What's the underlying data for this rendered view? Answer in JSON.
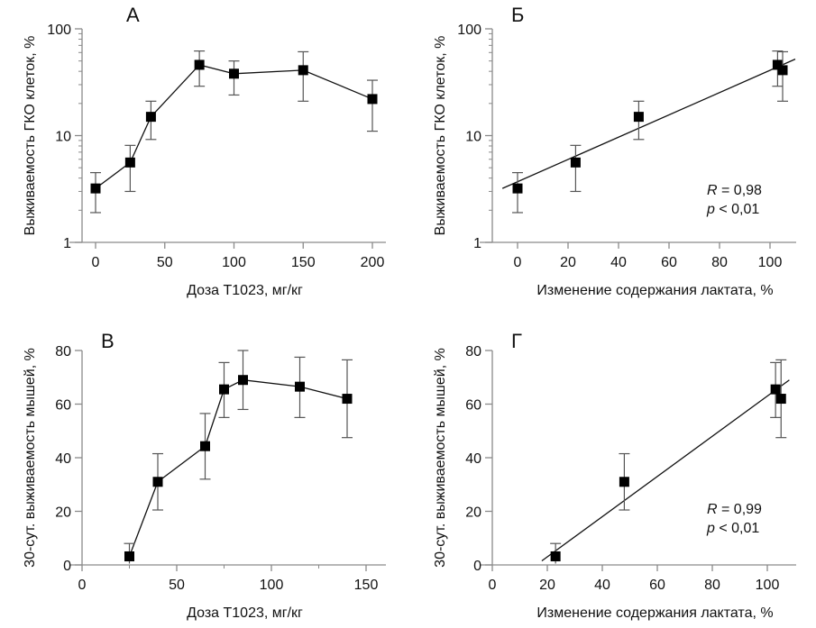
{
  "chart_data": [
    {
      "id": "A",
      "type": "line",
      "panel_label": "А",
      "xlabel": "Доза Т1023, мг/кг",
      "ylabel": "Выживаемость ГКО клеток, %",
      "yscale": "log",
      "xlim": [
        -10,
        210
      ],
      "ylim": [
        1,
        100
      ],
      "xticks": [
        0,
        50,
        100,
        150,
        200
      ],
      "xtick_labels": [
        "0",
        "50",
        "100",
        "150",
        "200"
      ],
      "yticks": [
        1,
        10,
        100
      ],
      "ytick_labels": [
        "1",
        "10",
        "100"
      ],
      "connect_points": true,
      "points": [
        {
          "x": 0,
          "y": 3.2,
          "err_hi": 4.5,
          "err_lo": 1.9
        },
        {
          "x": 25,
          "y": 5.6,
          "err_hi": 8.1,
          "err_lo": 3.0
        },
        {
          "x": 40,
          "y": 15,
          "err_hi": 21,
          "err_lo": 9.2
        },
        {
          "x": 75,
          "y": 46,
          "err_hi": 62,
          "err_lo": 29
        },
        {
          "x": 100,
          "y": 38,
          "err_hi": 50,
          "err_lo": 24
        },
        {
          "x": 150,
          "y": 41,
          "err_hi": 61,
          "err_lo": 21
        },
        {
          "x": 200,
          "y": 22,
          "err_hi": 33,
          "err_lo": 11
        }
      ]
    },
    {
      "id": "B",
      "type": "scatter",
      "panel_label": "Б",
      "xlabel": "Изменение содержания лактата, %",
      "ylabel": "Выживаемость ГКО клеток, %",
      "yscale": "log",
      "xlim": [
        -10,
        110
      ],
      "ylim": [
        1,
        100
      ],
      "xticks": [
        0,
        20,
        40,
        60,
        80,
        100
      ],
      "xtick_labels": [
        "0",
        "20",
        "40",
        "60",
        "80",
        "100"
      ],
      "yticks": [
        1,
        10,
        100
      ],
      "ytick_labels": [
        "1",
        "10",
        "100"
      ],
      "connect_points": false,
      "points": [
        {
          "x": 0,
          "y": 3.2,
          "err_hi": 4.5,
          "err_lo": 1.9
        },
        {
          "x": 23,
          "y": 5.6,
          "err_hi": 8.1,
          "err_lo": 3.0
        },
        {
          "x": 48,
          "y": 15,
          "err_hi": 21,
          "err_lo": 9.2
        },
        {
          "x": 103,
          "y": 46,
          "err_hi": 62,
          "err_lo": 29
        },
        {
          "x": 105,
          "y": 41,
          "err_hi": 61,
          "err_lo": 21
        }
      ],
      "fit": {
        "x": [
          -6,
          110
        ],
        "y": [
          3.2,
          52
        ]
      },
      "annotation": {
        "r_label": "R",
        "r_value": " = 0,98",
        "p_label": "p",
        "p_value": " < 0,01"
      }
    },
    {
      "id": "C",
      "type": "line",
      "panel_label": "В",
      "xlabel": "Доза Т1023, мг/кг",
      "ylabel": "30-сут. выживаемость мышей, %",
      "yscale": "linear",
      "xlim": [
        -10,
        160
      ],
      "ylim": [
        0,
        80
      ],
      "xticks": [
        0,
        50,
        100,
        150
      ],
      "xtick_labels": [
        "0",
        "50",
        "100",
        "150"
      ],
      "xminor": [
        25,
        75,
        125
      ],
      "yticks": [
        0,
        20,
        40,
        60,
        80
      ],
      "ytick_labels": [
        "0",
        "20",
        "40",
        "60",
        "80"
      ],
      "connect_points": true,
      "points": [
        {
          "x": 25,
          "y": 3.2,
          "err_hi": 8,
          "err_lo": 0
        },
        {
          "x": 40,
          "y": 31,
          "err_hi": 41.5,
          "err_lo": 20.5
        },
        {
          "x": 65,
          "y": 44.3,
          "err_hi": 56.5,
          "err_lo": 32
        },
        {
          "x": 75,
          "y": 65.5,
          "err_hi": 75.5,
          "err_lo": 55
        },
        {
          "x": 85,
          "y": 69,
          "err_hi": 80,
          "err_lo": 58
        },
        {
          "x": 115,
          "y": 66.5,
          "err_hi": 77.5,
          "err_lo": 55
        },
        {
          "x": 140,
          "y": 62,
          "err_hi": 76.5,
          "err_lo": 47.5
        }
      ]
    },
    {
      "id": "D",
      "type": "scatter",
      "panel_label": "Г",
      "xlabel": "Изменение содержания лактата, %",
      "ylabel": "30-сут. выживаемость мышей, %",
      "yscale": "linear",
      "xlim": [
        -4,
        110
      ],
      "ylim": [
        0,
        80
      ],
      "xticks": [
        0,
        20,
        40,
        60,
        80,
        100
      ],
      "xtick_labels": [
        "0",
        "20",
        "40",
        "60",
        "80",
        "100"
      ],
      "yticks": [
        0,
        20,
        40,
        60,
        80
      ],
      "ytick_labels": [
        "0",
        "20",
        "40",
        "60",
        "80"
      ],
      "connect_points": false,
      "points": [
        {
          "x": 23,
          "y": 3.2,
          "err_hi": 8,
          "err_lo": 0
        },
        {
          "x": 48,
          "y": 31,
          "err_hi": 41.5,
          "err_lo": 20.5
        },
        {
          "x": 103,
          "y": 65.5,
          "err_hi": 75.5,
          "err_lo": 55
        },
        {
          "x": 105,
          "y": 62,
          "err_hi": 76.5,
          "err_lo": 47.5
        }
      ],
      "fit": {
        "x": [
          18,
          108
        ],
        "y": [
          1.5,
          69
        ]
      },
      "annotation": {
        "r_label": "R",
        "r_value": " = 0,99",
        "p_label": "p",
        "p_value": " < 0,01"
      }
    }
  ]
}
